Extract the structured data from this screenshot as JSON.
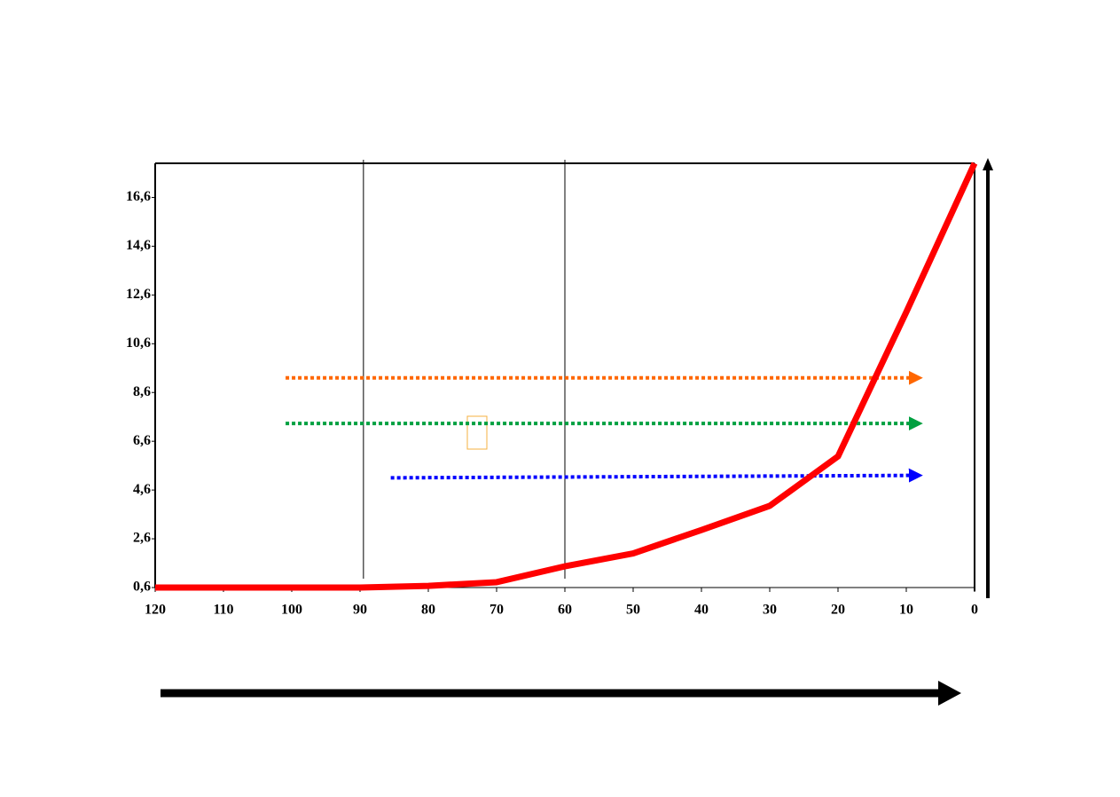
{
  "chart_data": {
    "type": "line",
    "x": [
      120,
      110,
      100,
      90,
      80,
      70,
      60,
      50,
      40,
      30,
      20,
      10,
      0
    ],
    "series": [
      {
        "color": "#ff0000",
        "values": [
          0.6,
          0.6,
          0.6,
          0.6,
          0.67,
          0.82,
          1.47,
          2.0,
          2.96,
          3.95,
          5.98,
          11.9,
          18
        ]
      }
    ],
    "xlim": [
      120,
      0
    ],
    "xticks": [
      120,
      110,
      100,
      90,
      80,
      70,
      60,
      50,
      40,
      30,
      20,
      10,
      0
    ],
    "ylim": [
      0.6,
      18
    ],
    "yticks": [
      {
        "value": 0.6,
        "label": "0,6"
      },
      {
        "value": 2.6,
        "label": "2,6"
      },
      {
        "value": 4.6,
        "label": "4,6"
      },
      {
        "value": 6.6,
        "label": "6,6"
      },
      {
        "value": 8.6,
        "label": "8,6"
      },
      {
        "value": 10.6,
        "label": "10,6"
      },
      {
        "value": 12.6,
        "label": "12,6"
      },
      {
        "value": 14.6,
        "label": "14,6"
      },
      {
        "value": 16.6,
        "label": "16,6"
      }
    ],
    "vlines": [
      89.5,
      60
    ],
    "arrows": [
      {
        "color": "#ff6600",
        "x": [
          100.9,
          8.6
        ],
        "y": [
          9.2,
          9.2
        ]
      },
      {
        "color": "#00a040",
        "x": [
          100.9,
          8.6
        ],
        "y": [
          7.33,
          7.33
        ]
      },
      {
        "color": "#0000ff",
        "x": [
          85.5,
          8.6
        ],
        "y": [
          5.1,
          5.2
        ]
      }
    ]
  }
}
